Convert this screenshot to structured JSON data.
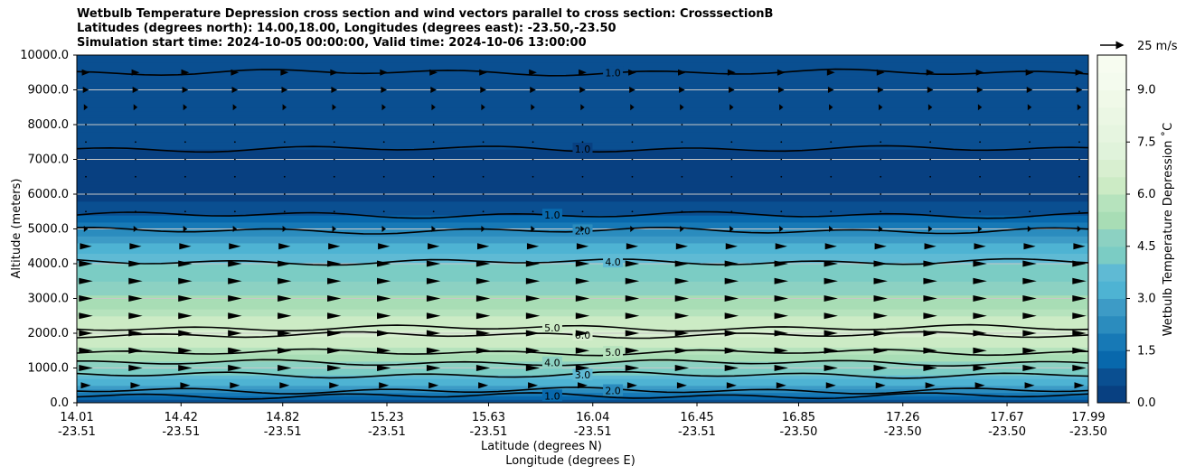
{
  "chart_data": {
    "type": "heatmap",
    "title_lines": [
      "Wetbulb Temperature Depression cross section and wind vectors parallel to cross section: CrosssectionB",
      "Latitudes (degrees north): 14.00,18.00, Longitudes (degrees east): -23.50,-23.50",
      "Simulation start time: 2024-10-05 00:00:00, Valid time: 2024-10-06 13:00:00"
    ],
    "ylabel": "Altitude (meters)",
    "xlabel_lat": "Latitude (degrees N)",
    "xlabel_lon": "Longitude (degrees E)",
    "ylim": [
      0,
      10000
    ],
    "yticks": [
      {
        "value": 0,
        "label": "0.0"
      },
      {
        "value": 1000,
        "label": "1000.0"
      },
      {
        "value": 2000,
        "label": "2000.0"
      },
      {
        "value": 3000,
        "label": "3000.0"
      },
      {
        "value": 4000,
        "label": "4000.0"
      },
      {
        "value": 5000,
        "label": "5000.0"
      },
      {
        "value": 6000,
        "label": "6000.0"
      },
      {
        "value": 7000,
        "label": "7000.0"
      },
      {
        "value": 8000,
        "label": "8000.0"
      },
      {
        "value": 9000,
        "label": "9000.0"
      },
      {
        "value": 10000,
        "label": "10000.0"
      }
    ],
    "xlim": [
      14.01,
      17.99
    ],
    "xticks": [
      {
        "value": 14.01,
        "lat": "14.01",
        "lon": "-23.51"
      },
      {
        "value": 14.42,
        "lat": "14.42",
        "lon": "-23.51"
      },
      {
        "value": 14.82,
        "lat": "14.82",
        "lon": "-23.51"
      },
      {
        "value": 15.23,
        "lat": "15.23",
        "lon": "-23.51"
      },
      {
        "value": 15.63,
        "lat": "15.63",
        "lon": "-23.51"
      },
      {
        "value": 16.04,
        "lat": "16.04",
        "lon": "-23.51"
      },
      {
        "value": 16.45,
        "lat": "16.45",
        "lon": "-23.51"
      },
      {
        "value": 16.85,
        "lat": "16.85",
        "lon": "-23.50"
      },
      {
        "value": 17.26,
        "lat": "17.26",
        "lon": "-23.50"
      },
      {
        "value": 17.67,
        "lat": "17.67",
        "lon": "-23.50"
      },
      {
        "value": 17.99,
        "lat": "17.99",
        "lon": "-23.50"
      }
    ],
    "colorbar": {
      "label": "Wetbulb Temperature Depression $^\\circ$C",
      "label_display": "Wetbulb Temperature Depression ˚C",
      "min": 0,
      "max": 10,
      "ticks": [
        {
          "value": 0,
          "label": "0.0"
        },
        {
          "value": 1.5,
          "label": "1.5"
        },
        {
          "value": 3,
          "label": "3.0"
        },
        {
          "value": 4.5,
          "label": "4.5"
        },
        {
          "value": 6,
          "label": "6.0"
        },
        {
          "value": 7.5,
          "label": "7.5"
        },
        {
          "value": 9,
          "label": "9.0"
        }
      ],
      "levels": 20,
      "colors": [
        "#084081",
        "#0a4f91",
        "#0868ac",
        "#1779b6",
        "#2b8cbe",
        "#3d9bc6",
        "#4eb3d3",
        "#5fbad4",
        "#7bccc4",
        "#8cd1c2",
        "#a8ddb5",
        "#b6e3bd",
        "#ccebc5",
        "#d8efd0",
        "#e0f3db",
        "#e6f5e0",
        "#ebf7e4",
        "#f0f9e8",
        "#f4fbee",
        "#f7fcf0"
      ]
    },
    "wind_key_label": "25 m/s",
    "profile_altitudes": [
      0,
      200,
      400,
      700,
      1000,
      1300,
      1600,
      2000,
      2400,
      2800,
      3200,
      3600,
      4000,
      4500,
      5000,
      5400,
      6000,
      7000,
      8000,
      9000,
      10000
    ],
    "profile_values": [
      0.8,
      1.3,
      2.6,
      3.6,
      4.4,
      5.3,
      6.1,
      6.6,
      6.1,
      5.4,
      4.8,
      4.4,
      4.0,
      3.2,
      2.0,
      1.0,
      0.3,
      0.35,
      0.8,
      0.9,
      0.7
    ],
    "contours": [
      {
        "label": "1.0",
        "altitude": 5400
      },
      {
        "label": "2.0",
        "altitude": 4950
      },
      {
        "label": "4.0",
        "altitude": 4050
      },
      {
        "label": "5.0",
        "altitude": 2150
      },
      {
        "label": "6.0",
        "altitude": 1950
      },
      {
        "label": "5.0",
        "altitude": 1450
      },
      {
        "label": "4.0",
        "altitude": 1150
      },
      {
        "label": "3.0",
        "altitude": 800
      },
      {
        "label": "2.0",
        "altitude": 350
      },
      {
        "label": "1.0",
        "altitude": 200
      },
      {
        "label": "1.0",
        "altitude": 7300
      },
      {
        "label": "1.0",
        "altitude": 9500
      }
    ],
    "wind_rows": [
      {
        "altitude": 500,
        "speed": 5
      },
      {
        "altitude": 1000,
        "speed": 7
      },
      {
        "altitude": 1500,
        "speed": 7
      },
      {
        "altitude": 2000,
        "speed": 7
      },
      {
        "altitude": 2500,
        "speed": 7
      },
      {
        "altitude": 3000,
        "speed": 7
      },
      {
        "altitude": 3500,
        "speed": 7
      },
      {
        "altitude": 4000,
        "speed": 7
      },
      {
        "altitude": 4500,
        "speed": 6
      },
      {
        "altitude": 5000,
        "speed": 2
      },
      {
        "altitude": 5500,
        "speed": 1
      },
      {
        "altitude": 6000,
        "speed": 1
      },
      {
        "altitude": 6500,
        "speed": 1
      },
      {
        "altitude": 7000,
        "speed": 1
      },
      {
        "altitude": 7500,
        "speed": 1
      },
      {
        "altitude": 8000,
        "speed": 1
      },
      {
        "altitude": 8500,
        "speed": 2
      },
      {
        "altitude": 9000,
        "speed": 3
      },
      {
        "altitude": 9500,
        "speed": 4
      }
    ]
  }
}
